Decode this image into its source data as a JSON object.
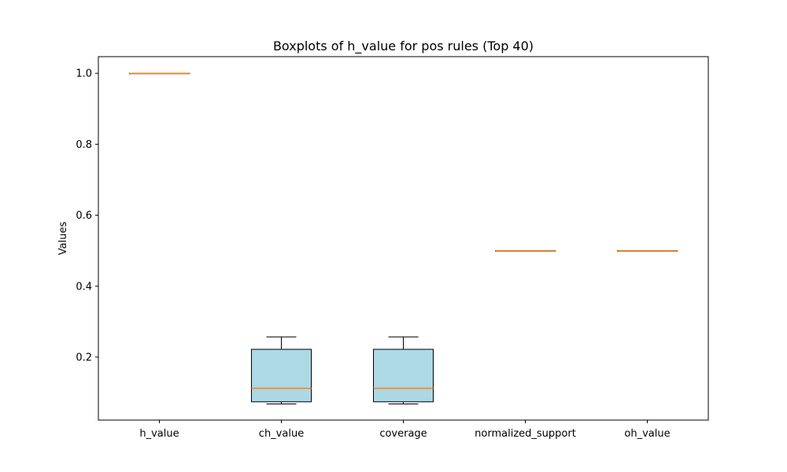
{
  "chart_data": {
    "type": "box",
    "title": "Boxplots of h_value for pos rules (Top 40)",
    "xlabel": "",
    "ylabel": "Values",
    "categories": [
      "h_value",
      "ch_value",
      "coverage",
      "normalized_support",
      "oh_value"
    ],
    "yticks": [
      0.2,
      0.4,
      0.6,
      0.8,
      1.0
    ],
    "ylim": [
      0.0225,
      1.047
    ],
    "grid": false,
    "boxes": [
      {
        "whisker_low": 1.0,
        "q1": 1.0,
        "median": 1.0,
        "q3": 1.0,
        "whisker_high": 1.0
      },
      {
        "whisker_low": 0.068,
        "q1": 0.074,
        "median": 0.112,
        "q3": 0.222,
        "whisker_high": 0.257
      },
      {
        "whisker_low": 0.068,
        "q1": 0.074,
        "median": 0.112,
        "q3": 0.222,
        "whisker_high": 0.257
      },
      {
        "whisker_low": 0.5,
        "q1": 0.5,
        "median": 0.5,
        "q3": 0.5,
        "whisker_high": 0.5
      },
      {
        "whisker_low": 0.5,
        "q1": 0.5,
        "median": 0.5,
        "q3": 0.5,
        "whisker_high": 0.5
      }
    ],
    "colors": {
      "box_fill": "#add8e6",
      "box_edge": "#000000",
      "median": "#ff7f0e"
    }
  }
}
